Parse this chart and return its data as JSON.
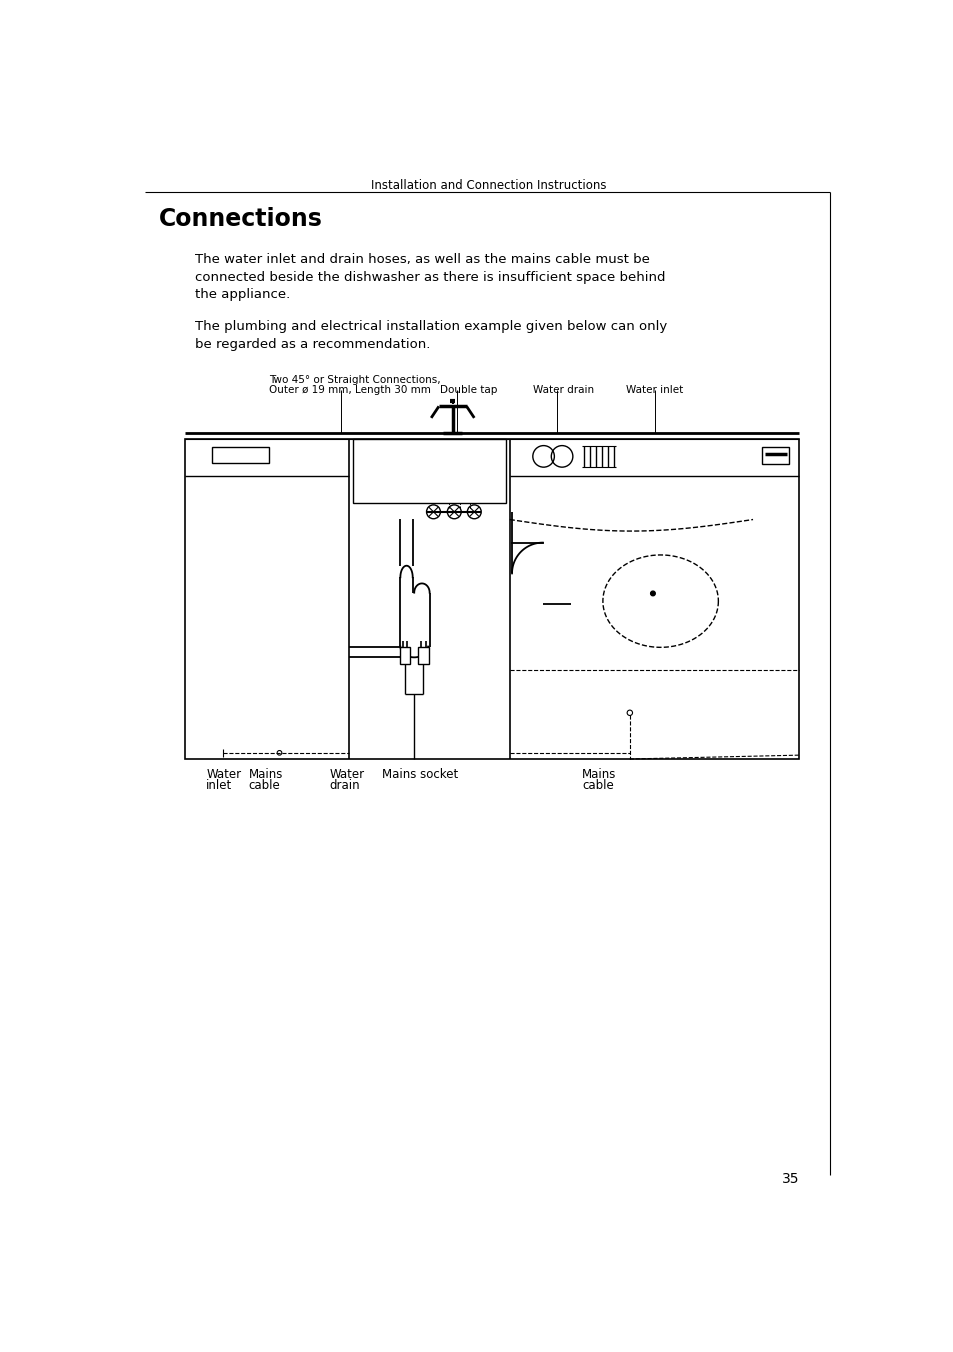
{
  "page_title": "Installation and Connection Instructions",
  "section_title": "Connections",
  "para1": "The water inlet and drain hoses, as well as the mains cable must be\nconnected beside the dishwasher as there is insufficient space behind\nthe appliance.",
  "para2": "The plumbing and electrical installation example given below can only\nbe regarded as a recommendation.",
  "label_top1": "Two 45° or Straight Connections,",
  "label_top2": "Outer ø 19 mm, Length 30 mm",
  "label_doubletap": "Double tap",
  "label_waterdrain_top": "Water drain",
  "label_waterinlet_top": "Water inlet",
  "label_waterinlet_bot1": "Water",
  "label_waterinlet_bot2": "inlet",
  "label_mainscable_bot1a": "Mains",
  "label_mainscable_bot1b": "cable",
  "label_waterdrain_bot1": "Water",
  "label_waterdrain_bot2": "drain",
  "label_mainssocket": "Mains socket",
  "label_mainscable_bot2a": "Mains",
  "label_mainscable_bot2b": "cable",
  "page_number": "35",
  "bg_color": "#ffffff",
  "text_color": "#000000",
  "line_color": "#000000"
}
